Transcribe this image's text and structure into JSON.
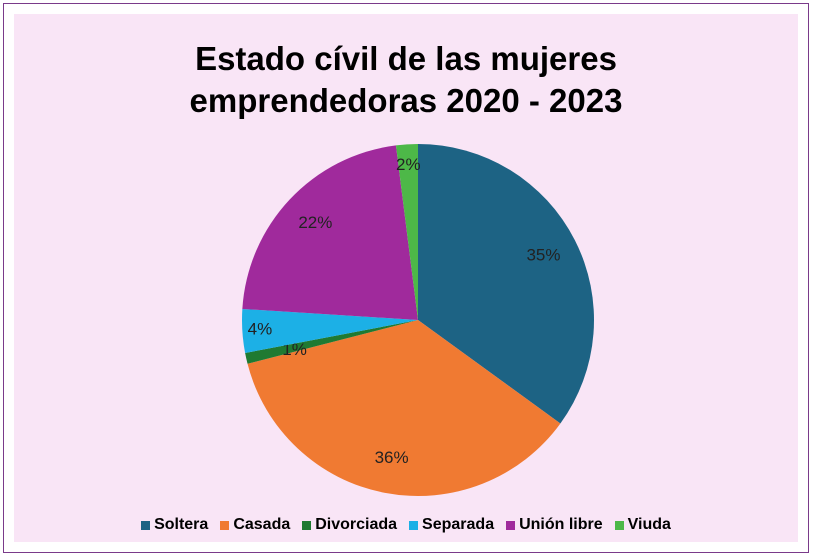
{
  "chart_data": {
    "type": "pie",
    "title": "Estado cívil de las mujeres emprendedoras 2020 - 2023",
    "categories": [
      "Soltera",
      "Casada",
      "Divorciada",
      "Separada",
      "Unión libre",
      "Viuda"
    ],
    "values": [
      35,
      36,
      1,
      4,
      22,
      2
    ],
    "value_labels": [
      "35%",
      "36%",
      "1%",
      "4%",
      "22%",
      "2%"
    ],
    "colors": [
      "#1d6384",
      "#f07a32",
      "#1f7a32",
      "#1cb0e6",
      "#a02a9c",
      "#4db848"
    ],
    "legend": "bottom"
  }
}
